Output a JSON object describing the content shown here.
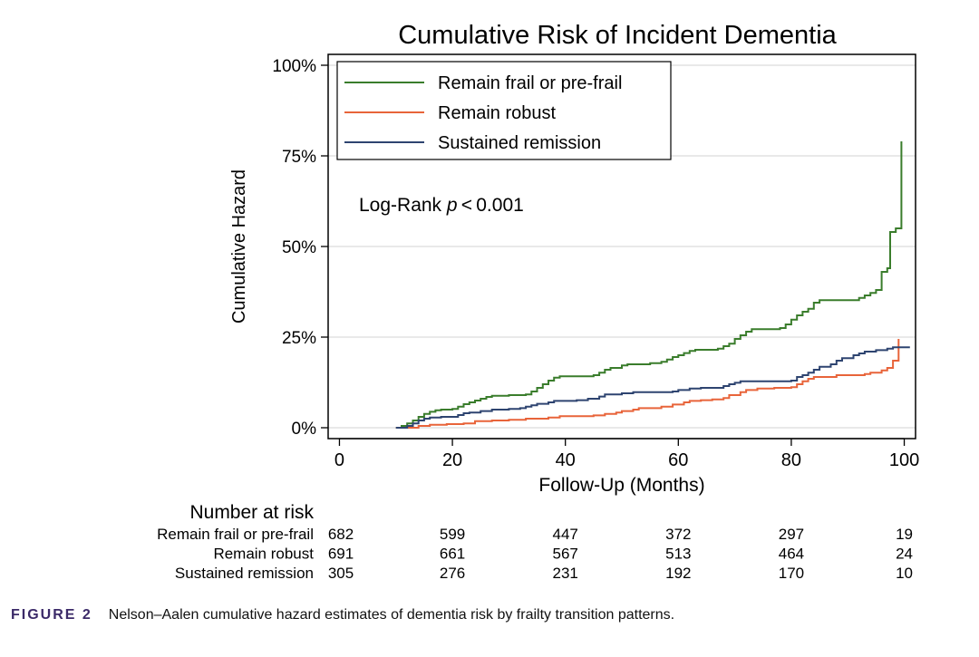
{
  "chart_data": {
    "type": "line",
    "step": true,
    "title": "Cumulative Risk of Incident Dementia",
    "xlabel": "Follow-Up (Months)",
    "ylabel": "Cumulative Hazard",
    "xlim": [
      -2,
      102
    ],
    "ylim": [
      -0.03,
      1.03
    ],
    "x_ticks": [
      0,
      20,
      40,
      60,
      80,
      100
    ],
    "x_tick_labels": [
      "0",
      "20",
      "40",
      "60",
      "80",
      "100"
    ],
    "y_ticks": [
      0,
      0.25,
      0.5,
      0.75,
      1.0
    ],
    "y_tick_labels": [
      "0%",
      "25%",
      "50%",
      "75%",
      "100%"
    ],
    "grid": "horizontal",
    "legend_position": "top-left",
    "annotation": {
      "prefix": "Log-Rank ",
      "italic": "p",
      "suffix": " < 0.001"
    },
    "series": [
      {
        "name": "Remain frail or pre-frail",
        "color": "#3a7d2c",
        "points": [
          [
            10,
            0
          ],
          [
            11,
            0.005
          ],
          [
            12,
            0.012
          ],
          [
            13,
            0.02
          ],
          [
            14,
            0.03
          ],
          [
            15,
            0.038
          ],
          [
            16,
            0.044
          ],
          [
            17,
            0.048
          ],
          [
            18,
            0.05
          ],
          [
            20,
            0.052
          ],
          [
            21,
            0.058
          ],
          [
            22,
            0.065
          ],
          [
            23,
            0.07
          ],
          [
            24,
            0.075
          ],
          [
            25,
            0.08
          ],
          [
            26,
            0.085
          ],
          [
            27,
            0.088
          ],
          [
            30,
            0.09
          ],
          [
            33,
            0.092
          ],
          [
            34,
            0.1
          ],
          [
            35,
            0.11
          ],
          [
            36,
            0.12
          ],
          [
            37,
            0.13
          ],
          [
            38,
            0.138
          ],
          [
            39,
            0.142
          ],
          [
            45,
            0.145
          ],
          [
            46,
            0.152
          ],
          [
            47,
            0.16
          ],
          [
            48,
            0.165
          ],
          [
            50,
            0.172
          ],
          [
            51,
            0.175
          ],
          [
            55,
            0.178
          ],
          [
            57,
            0.182
          ],
          [
            58,
            0.188
          ],
          [
            59,
            0.195
          ],
          [
            60,
            0.2
          ],
          [
            61,
            0.206
          ],
          [
            62,
            0.212
          ],
          [
            63,
            0.215
          ],
          [
            67,
            0.218
          ],
          [
            68,
            0.225
          ],
          [
            69,
            0.232
          ],
          [
            70,
            0.245
          ],
          [
            71,
            0.255
          ],
          [
            72,
            0.265
          ],
          [
            73,
            0.272
          ],
          [
            78,
            0.275
          ],
          [
            79,
            0.285
          ],
          [
            80,
            0.298
          ],
          [
            81,
            0.31
          ],
          [
            82,
            0.32
          ],
          [
            83,
            0.328
          ],
          [
            84,
            0.345
          ],
          [
            85,
            0.352
          ],
          [
            92,
            0.358
          ],
          [
            93,
            0.365
          ],
          [
            94,
            0.372
          ],
          [
            95,
            0.38
          ],
          [
            96,
            0.43
          ],
          [
            97,
            0.44
          ],
          [
            97.5,
            0.54
          ],
          [
            98.5,
            0.55
          ],
          [
            99.5,
            0.79
          ]
        ]
      },
      {
        "name": "Remain robust",
        "color": "#e8643a",
        "points": [
          [
            10,
            0
          ],
          [
            14,
            0.005
          ],
          [
            16,
            0.008
          ],
          [
            19,
            0.01
          ],
          [
            22,
            0.012
          ],
          [
            24,
            0.018
          ],
          [
            27,
            0.02
          ],
          [
            30,
            0.022
          ],
          [
            33,
            0.025
          ],
          [
            37,
            0.028
          ],
          [
            39,
            0.032
          ],
          [
            45,
            0.034
          ],
          [
            47,
            0.038
          ],
          [
            49,
            0.042
          ],
          [
            50,
            0.046
          ],
          [
            52,
            0.05
          ],
          [
            53,
            0.054
          ],
          [
            57,
            0.058
          ],
          [
            59,
            0.064
          ],
          [
            61,
            0.07
          ],
          [
            62,
            0.074
          ],
          [
            64,
            0.076
          ],
          [
            66,
            0.078
          ],
          [
            68,
            0.082
          ],
          [
            69,
            0.09
          ],
          [
            71,
            0.098
          ],
          [
            72,
            0.104
          ],
          [
            74,
            0.108
          ],
          [
            77,
            0.11
          ],
          [
            80,
            0.112
          ],
          [
            81,
            0.12
          ],
          [
            82,
            0.128
          ],
          [
            83,
            0.135
          ],
          [
            84,
            0.14
          ],
          [
            88,
            0.145
          ],
          [
            93,
            0.148
          ],
          [
            94,
            0.152
          ],
          [
            96,
            0.158
          ],
          [
            97,
            0.165
          ],
          [
            98,
            0.185
          ],
          [
            99,
            0.245
          ]
        ]
      },
      {
        "name": "Sustained  remission",
        "color": "#2e4470",
        "points": [
          [
            10,
            0
          ],
          [
            12,
            0.005
          ],
          [
            13,
            0.012
          ],
          [
            14,
            0.02
          ],
          [
            15,
            0.025
          ],
          [
            16,
            0.028
          ],
          [
            18,
            0.03
          ],
          [
            21,
            0.035
          ],
          [
            22,
            0.04
          ],
          [
            23,
            0.042
          ],
          [
            25,
            0.046
          ],
          [
            27,
            0.05
          ],
          [
            30,
            0.052
          ],
          [
            32,
            0.054
          ],
          [
            33,
            0.058
          ],
          [
            34,
            0.062
          ],
          [
            35,
            0.066
          ],
          [
            37,
            0.07
          ],
          [
            38,
            0.074
          ],
          [
            42,
            0.076
          ],
          [
            44,
            0.08
          ],
          [
            46,
            0.086
          ],
          [
            47,
            0.092
          ],
          [
            50,
            0.095
          ],
          [
            52,
            0.098
          ],
          [
            59,
            0.1
          ],
          [
            60,
            0.104
          ],
          [
            62,
            0.108
          ],
          [
            64,
            0.11
          ],
          [
            68,
            0.115
          ],
          [
            69,
            0.12
          ],
          [
            70,
            0.124
          ],
          [
            71,
            0.128
          ],
          [
            80,
            0.13
          ],
          [
            81,
            0.14
          ],
          [
            82,
            0.145
          ],
          [
            83,
            0.152
          ],
          [
            84,
            0.16
          ],
          [
            85,
            0.168
          ],
          [
            87,
            0.175
          ],
          [
            88,
            0.185
          ],
          [
            89,
            0.192
          ],
          [
            91,
            0.2
          ],
          [
            92,
            0.205
          ],
          [
            93,
            0.21
          ],
          [
            95,
            0.214
          ],
          [
            97,
            0.218
          ],
          [
            98,
            0.222
          ],
          [
            101,
            0.222
          ]
        ]
      }
    ],
    "risk_table": {
      "title": "Number at risk",
      "rows": [
        {
          "label": "Remain frail or pre-frail",
          "values": [
            "682",
            "599",
            "447",
            "372",
            "297",
            "19"
          ]
        },
        {
          "label": "Remain robust",
          "values": [
            "691",
            "661",
            "567",
            "513",
            "464",
            "24"
          ]
        },
        {
          "label": "Sustained remission",
          "values": [
            "305",
            "276",
            "231",
            "192",
            "170",
            "10"
          ]
        }
      ]
    }
  },
  "caption": {
    "figure_label": "FIGURE 2",
    "text": "Nelson–Aalen cumulative hazard estimates of dementia risk by frailty transition patterns."
  }
}
